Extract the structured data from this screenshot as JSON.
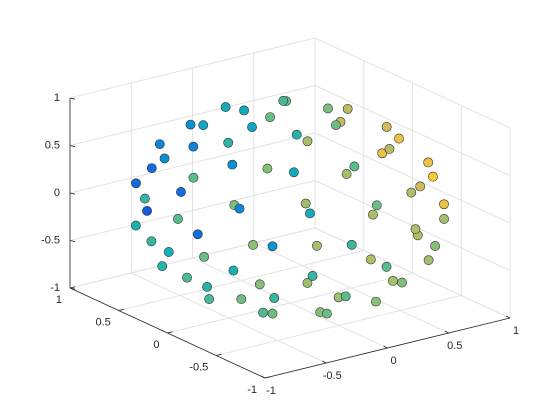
{
  "chart_data": {
    "type": "scatter3d",
    "colormap": "parula",
    "grid": true,
    "x": [
      0.31,
      0.16,
      -0.16,
      -0.31,
      -0.16,
      0.16,
      0.63,
      0.39,
      0,
      -0.39,
      -0.63,
      -0.63,
      -0.39,
      0,
      0.39,
      0.63,
      0.89,
      0.77,
      0.45,
      0,
      -0.45,
      -0.77,
      -0.89,
      -0.77,
      -0.45,
      0,
      0.45,
      0.77,
      0.96,
      0.7,
      0.26,
      -0.26,
      -0.7,
      -0.96,
      -0.96,
      -0.7,
      -0.26,
      0.26,
      0.7,
      0.96,
      0.99,
      0.86,
      0.5,
      0,
      -0.5,
      -0.86,
      -0.99,
      -0.86,
      -0.5,
      0,
      0.5,
      0.86,
      0.86,
      0.63,
      0.23,
      -0.23,
      -0.63,
      -0.86,
      -0.86,
      -0.63,
      -0.23,
      0.23,
      0.63,
      0.86,
      0.66,
      0.53,
      0.2,
      -0.2,
      -0.53,
      -0.66,
      -0.53,
      -0.2,
      0.2,
      0.53,
      0.27,
      0,
      -0.27,
      -0.27,
      0,
      0.27
    ],
    "y": [
      0,
      0.27,
      0.27,
      0,
      -0.27,
      -0.27,
      0.2,
      0.53,
      0.66,
      0.53,
      0.2,
      -0.2,
      -0.53,
      -0.66,
      -0.53,
      -0.2,
      0,
      0.45,
      0.77,
      0.89,
      0.77,
      0.45,
      0,
      -0.45,
      -0.77,
      -0.89,
      -0.77,
      -0.45,
      0.26,
      0.7,
      0.96,
      0.96,
      0.7,
      0.26,
      -0.26,
      -0.7,
      -0.96,
      -0.96,
      -0.7,
      -0.26,
      0,
      0.5,
      0.86,
      0.99,
      0.86,
      0.5,
      0,
      -0.5,
      -0.86,
      -0.99,
      -0.86,
      -0.5,
      0.23,
      0.63,
      0.86,
      0.86,
      0.63,
      0.23,
      -0.23,
      -0.63,
      -0.86,
      -0.86,
      -0.63,
      -0.23,
      0,
      0.39,
      0.63,
      0.63,
      0.39,
      0,
      -0.39,
      -0.63,
      -0.63,
      -0.39,
      0.16,
      0.31,
      0.16,
      -0.16,
      -0.31,
      -0.16
    ],
    "z": [
      0.95,
      0.95,
      0.95,
      0.95,
      0.95,
      0.95,
      0.75,
      0.75,
      0.75,
      0.75,
      0.75,
      0.75,
      0.75,
      0.75,
      0.75,
      0.75,
      0.45,
      0.45,
      0.45,
      0.45,
      0.45,
      0.45,
      0.45,
      0.45,
      0.45,
      0.45,
      0.45,
      0.45,
      0.15,
      0.15,
      0.15,
      0.15,
      0.15,
      0.15,
      0.15,
      0.15,
      0.15,
      0.15,
      0.15,
      0.15,
      -0.15,
      -0.15,
      -0.15,
      -0.15,
      -0.15,
      -0.15,
      -0.15,
      -0.15,
      -0.15,
      -0.15,
      -0.15,
      -0.15,
      -0.45,
      -0.45,
      -0.45,
      -0.45,
      -0.45,
      -0.45,
      -0.45,
      -0.45,
      -0.45,
      -0.45,
      -0.45,
      -0.45,
      -0.75,
      -0.75,
      -0.75,
      -0.75,
      -0.75,
      -0.75,
      -0.75,
      -0.75,
      -0.75,
      -0.75,
      -0.95,
      -0.95,
      -0.95,
      -0.95,
      -0.95,
      -0.95
    ],
    "xlim": [
      -1,
      1
    ],
    "ylim": [
      -1,
      1
    ],
    "zlim": [
      -1,
      1
    ],
    "xticks": [
      -1,
      -0.5,
      0,
      0.5,
      1
    ],
    "yticks": [
      -1,
      -0.5,
      0,
      0.5,
      1
    ],
    "zticks": [
      -1,
      -0.5,
      0,
      0.5,
      1
    ]
  }
}
